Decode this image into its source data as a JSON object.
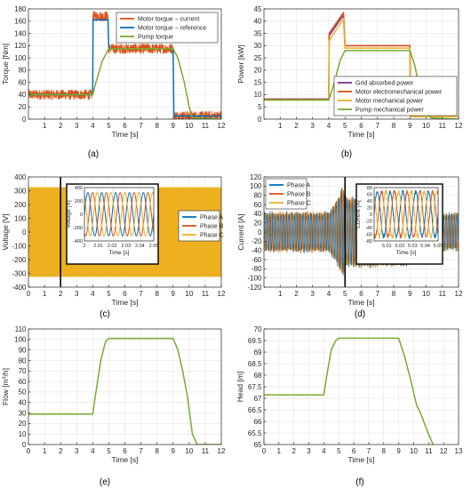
{
  "colors": {
    "blue": "#0072BD",
    "orange": "#D95319",
    "yellow": "#EDB120",
    "purple": "#7E2F8E",
    "green": "#77AC30",
    "black": "#000000"
  },
  "chart_data": [
    {
      "id": "a",
      "panel_label": "(a)",
      "type": "line",
      "xlabel": "Time [s]",
      "ylabel": "Torque [Nm]",
      "xlim": [
        0,
        12
      ],
      "ylim": [
        0,
        180
      ],
      "xticks": [
        1,
        2,
        3,
        4,
        5,
        6,
        7,
        8,
        9,
        10,
        11,
        12
      ],
      "yticks": [
        0,
        20,
        40,
        60,
        80,
        100,
        120,
        140,
        160,
        180
      ],
      "grid": true,
      "legend_position": "top-right",
      "series": [
        {
          "name": "Motor torque − current",
          "color": "orange",
          "noisy": true,
          "noise": 8,
          "x": [
            0,
            4,
            4.02,
            4.95,
            5.0,
            9.0,
            9.05,
            12
          ],
          "y": [
            40,
            40,
            168,
            168,
            115,
            115,
            5,
            5
          ]
        },
        {
          "name": "Motor torque − reference",
          "color": "blue",
          "x": [
            0,
            4,
            4.02,
            4.95,
            5.0,
            9.0,
            9.05,
            12
          ],
          "y": [
            40,
            40,
            162,
            162,
            115,
            115,
            5,
            5
          ]
        },
        {
          "name": "Pump torque",
          "color": "green",
          "x": [
            0,
            4,
            4.2,
            4.6,
            5.0,
            9.0,
            9.3,
            9.7,
            10.0,
            10.2,
            12
          ],
          "y": [
            40,
            40,
            60,
            95,
            115,
            115,
            100,
            60,
            20,
            2,
            0
          ]
        }
      ]
    },
    {
      "id": "b",
      "panel_label": "(b)",
      "type": "line",
      "xlabel": "Time [s]",
      "ylabel": "Power [kW]",
      "xlim": [
        0,
        12
      ],
      "ylim": [
        0,
        45
      ],
      "xticks": [
        1,
        2,
        3,
        4,
        5,
        6,
        7,
        8,
        9,
        10,
        11,
        12
      ],
      "yticks": [
        0,
        5,
        10,
        15,
        20,
        25,
        30,
        35,
        40,
        45
      ],
      "grid": true,
      "legend_position": "right",
      "series": [
        {
          "name": "Grid absorbed power",
          "color": "purple",
          "x": [
            0,
            4,
            4.02,
            4.9,
            5.0,
            9.0,
            9.05,
            12
          ],
          "y": [
            8.2,
            8.2,
            34,
            42.5,
            30,
            30,
            1,
            1
          ]
        },
        {
          "name": "Motor electromechanical power",
          "color": "orange",
          "x": [
            0,
            4,
            4.02,
            4.9,
            5.0,
            9.0,
            9.05,
            12
          ],
          "y": [
            8.0,
            8.0,
            35,
            43.5,
            30,
            30,
            1,
            1
          ]
        },
        {
          "name": "Motor mechanical power",
          "color": "yellow",
          "x": [
            0,
            4,
            4.02,
            4.9,
            5.0,
            9.0,
            9.05,
            12
          ],
          "y": [
            7.8,
            7.8,
            32,
            41,
            29,
            29,
            1,
            1
          ]
        },
        {
          "name": "Pump mechanical power",
          "color": "green",
          "x": [
            0,
            4,
            4.3,
            4.7,
            5.0,
            9.0,
            9.3,
            9.6,
            10.0,
            10.3,
            12
          ],
          "y": [
            7.8,
            7.8,
            14,
            24,
            28,
            28,
            22,
            12,
            4,
            0.5,
            0
          ]
        }
      ]
    },
    {
      "id": "c",
      "panel_label": "(c)",
      "type": "line",
      "xlabel": "Time [s]",
      "ylabel": "Voltage [V]",
      "xlim": [
        0,
        12
      ],
      "ylim": [
        -400,
        400
      ],
      "xticks": [
        0,
        1,
        2,
        3,
        4,
        5,
        6,
        7,
        8,
        9,
        10,
        11,
        12
      ],
      "yticks": [
        -400,
        -300,
        -200,
        -100,
        0,
        100,
        200,
        300,
        400
      ],
      "grid": true,
      "band": {
        "color": "yellow",
        "ymin": -325,
        "ymax": 325
      },
      "marker_x": 2,
      "inset": {
        "xlabel": "Time [s]",
        "ylabel": "Voltage [V]",
        "xlim": [
          2,
          2.05
        ],
        "ylim": [
          -400,
          400
        ],
        "xticks": [
          2,
          2.01,
          2.02,
          2.03,
          2.04,
          2.05
        ],
        "xticklabels": [
          "2",
          "2.01",
          "2.02",
          "2.03",
          "2.04",
          "2.05"
        ],
        "yticks": [
          -400,
          -200,
          0,
          200,
          400
        ],
        "amplitude": 325,
        "frequency": 100
      },
      "series": [
        {
          "name": "Phase A",
          "color": "blue"
        },
        {
          "name": "Phase B",
          "color": "orange"
        },
        {
          "name": "Phase C",
          "color": "yellow"
        }
      ],
      "legend_position": "right"
    },
    {
      "id": "d",
      "panel_label": "(d)",
      "type": "line",
      "xlabel": "Time [s]",
      "ylabel": "Current [A]",
      "xlim": [
        0,
        12
      ],
      "ylim": [
        -120,
        120
      ],
      "xticks": [
        1,
        2,
        3,
        4,
        5,
        6,
        7,
        8,
        9,
        10,
        11,
        12
      ],
      "yticks": [
        -120,
        -100,
        -80,
        -60,
        -40,
        -20,
        0,
        20,
        40,
        60,
        80,
        100,
        120
      ],
      "grid": true,
      "envelope": {
        "x": [
          0,
          4,
          4.5,
          4.9,
          5.0,
          8.8,
          8.85,
          12
        ],
        "amp": [
          42,
          42,
          70,
          100,
          75,
          75,
          40,
          40
        ]
      },
      "marker_x": 5,
      "inset": {
        "xlabel": "Time [s]",
        "ylabel": "Current [A]",
        "xlim": [
          5,
          5.05
        ],
        "ylim": [
          -80,
          80
        ],
        "xticks": [
          5.01,
          5.02,
          5.03,
          5.04,
          5.05
        ],
        "xticklabels": [
          "5.01",
          "5.02",
          "5.03",
          "5.04",
          "5.05"
        ],
        "yticks": [
          -80,
          -60,
          -40,
          -20,
          0,
          20,
          40,
          60,
          80
        ],
        "amplitude": 68,
        "frequency": 100
      },
      "series": [
        {
          "name": "Phase A",
          "color": "blue"
        },
        {
          "name": "Phase B",
          "color": "orange"
        },
        {
          "name": "Phase C",
          "color": "yellow"
        }
      ],
      "legend_position": "top-left"
    },
    {
      "id": "e",
      "panel_label": "(e)",
      "type": "line",
      "xlabel": "Time [s]",
      "ylabel": "Flow [m³/h]",
      "xlim": [
        0,
        12
      ],
      "ylim": [
        0,
        110
      ],
      "xticks": [
        0,
        1,
        2,
        3,
        4,
        5,
        6,
        7,
        8,
        9,
        10,
        11,
        12
      ],
      "yticks": [
        0,
        10,
        20,
        30,
        40,
        50,
        60,
        70,
        80,
        90,
        100,
        110
      ],
      "grid": true,
      "series": [
        {
          "name": "",
          "color": "green",
          "x": [
            0,
            4,
            4.2,
            4.5,
            4.8,
            5.0,
            9.0,
            9.3,
            9.6,
            9.9,
            10.2,
            10.5,
            12
          ],
          "y": [
            29,
            29,
            50,
            80,
            98,
            101,
            101,
            90,
            70,
            45,
            10,
            0,
            0
          ]
        }
      ]
    },
    {
      "id": "f",
      "panel_label": "(f)",
      "type": "line",
      "xlabel": "Time [s]",
      "ylabel": "Head [m]",
      "xlim": [
        0,
        13
      ],
      "ylim": [
        65,
        70
      ],
      "xticks": [
        0,
        1,
        2,
        3,
        4,
        5,
        6,
        7,
        8,
        9,
        10,
        11,
        12,
        13
      ],
      "yticks": [
        65,
        65.5,
        66,
        66.5,
        67,
        67.5,
        68,
        68.5,
        69,
        69.5,
        70
      ],
      "grid": true,
      "series": [
        {
          "name": "",
          "color": "green",
          "x": [
            0,
            4,
            4.2,
            4.5,
            4.8,
            5.0,
            9.0,
            9.4,
            9.8,
            10.2,
            10.5,
            10.9,
            11.3
          ],
          "y": [
            67.15,
            67.15,
            68.0,
            69.1,
            69.5,
            69.6,
            69.6,
            68.8,
            67.8,
            66.7,
            66.3,
            65.6,
            65.0
          ]
        }
      ]
    }
  ]
}
